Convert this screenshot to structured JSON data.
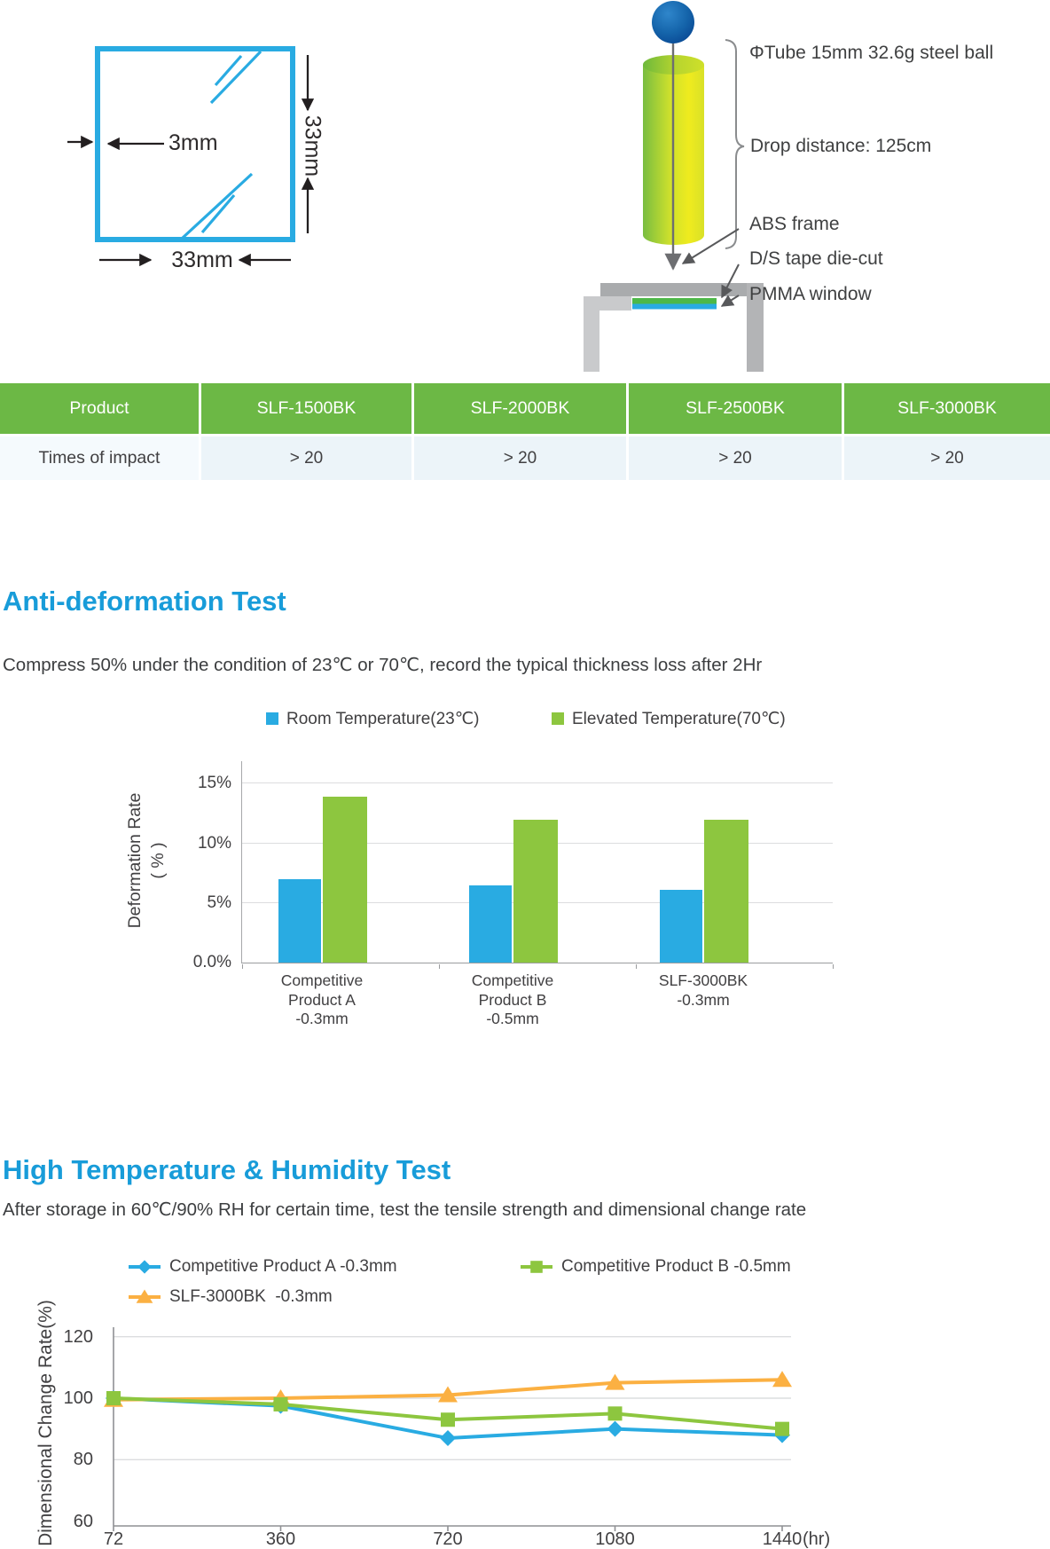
{
  "diagram": {
    "square": {
      "thickness_label": "3mm",
      "height_label": "33mm",
      "width_label": "33mm"
    },
    "apparatus": {
      "tube_label": "ΦTube 15mm 32.6g steel ball",
      "drop_label": "Drop distance: 125cm",
      "abs_label": "ABS frame",
      "tape_label": "D/S tape die-cut",
      "pmma_label": "PMMA window"
    }
  },
  "impact_table": {
    "header": [
      "Product",
      "SLF-1500BK",
      "SLF-2000BK",
      "SLF-2500BK",
      "SLF-3000BK"
    ],
    "rows": [
      [
        "Times of impact",
        "> 20",
        "> 20",
        "> 20",
        "> 20"
      ]
    ]
  },
  "sections": [
    {
      "title": "Anti-deformation Test",
      "description": "Compress 50% under the condition of 23℃ or 70℃, record the typical thickness loss after 2Hr"
    },
    {
      "title": "High Temperature & Humidity Test",
      "description": "After storage in 60℃/90% RH for certain time, test the tensile strength and dimensional change rate"
    }
  ],
  "chart_data": [
    {
      "type": "bar",
      "title": "Anti-deformation Test",
      "categories": [
        "Competitive\nProduct A\n-0.3mm",
        "Competitive\nProduct B\n-0.5mm",
        "SLF-3000BK\n-0.3mm"
      ],
      "series": [
        {
          "name": "Room Temperature(23℃)",
          "color": "#29abe2",
          "values": [
            7.0,
            6.5,
            6.1
          ]
        },
        {
          "name": "Elevated Temperature(70℃)",
          "color": "#8dc63f",
          "values": [
            13.9,
            12.0,
            12.0
          ]
        }
      ],
      "ylabel": "Deformation Rate\n( % )",
      "yticks": [
        {
          "label": "0.0%",
          "value": 0
        },
        {
          "label": "5%",
          "value": 5
        },
        {
          "label": "10%",
          "value": 10
        },
        {
          "label": "15%",
          "value": 15
        }
      ],
      "ylim": [
        0,
        16.9
      ],
      "grid": true,
      "legend_position": "top"
    },
    {
      "type": "line",
      "title": "High Temperature & Humidity Test",
      "x": [
        72,
        360,
        720,
        1080,
        1440
      ],
      "x_unit": "(hr)",
      "series": [
        {
          "name": "Competitive Product A -0.3mm",
          "color": "#29abe2",
          "marker": "diamond",
          "values": [
            100,
            97.5,
            87,
            90,
            88
          ]
        },
        {
          "name": "Competitive Product B -0.5mm",
          "color": "#8dc63f",
          "marker": "square",
          "values": [
            100,
            98,
            93,
            95,
            90
          ]
        },
        {
          "name": "SLF-3000BK  -0.3mm",
          "color": "#fbb042",
          "marker": "triangle",
          "values": [
            99.5,
            100,
            101,
            105,
            106
          ]
        }
      ],
      "ylabel": "Dimensional Change Rate(%)",
      "yticks": [
        120,
        100,
        80,
        60
      ],
      "ylim": [
        58,
        123
      ],
      "grid": true,
      "legend_position": "top-left"
    }
  ],
  "colors": {
    "accent_blue": "#29abe2",
    "accent_green": "#8dc63f",
    "accent_orange": "#fbb042",
    "heading_blue": "#189cd9",
    "table_header_green": "#6cb845",
    "table_row_bg": "#ecf4f9",
    "tape_green": "#4db848",
    "frame_gray": "#a9abad",
    "steel_ball_blue": "#0d57a7"
  }
}
